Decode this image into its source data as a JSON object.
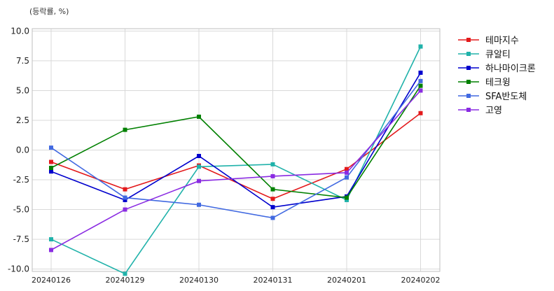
{
  "chart_data": {
    "type": "line",
    "unit_note": "(등락률, %)",
    "title": "",
    "xlabel": "",
    "ylabel": "",
    "categories": [
      "20240126",
      "20240129",
      "20240130",
      "20240131",
      "20240201",
      "20240202"
    ],
    "ylim": [
      -10.2,
      10.2
    ],
    "yticks": [
      10.0,
      7.5,
      5.0,
      2.5,
      0.0,
      -2.5,
      -5.0,
      -7.5,
      -10.0
    ],
    "ytick_labels": [
      "10.0",
      "7.5",
      "5.0",
      "2.5",
      "0.0",
      "-2.5",
      "-5.0",
      "-7.5",
      "-10.0"
    ],
    "grid": true,
    "legend_position": "right",
    "series": [
      {
        "name": "테마지수",
        "color": "#e31a1c",
        "values": [
          -1.0,
          -3.3,
          -1.3,
          -4.1,
          -1.6,
          3.1
        ]
      },
      {
        "name": "큐알티",
        "color": "#20b2aa",
        "values": [
          -7.5,
          -10.4,
          -1.4,
          -1.2,
          -4.2,
          8.7
        ]
      },
      {
        "name": "하나마이크론",
        "color": "#0000cd",
        "values": [
          -1.8,
          -4.2,
          -0.5,
          -4.8,
          -3.9,
          6.5
        ]
      },
      {
        "name": "테크윙",
        "color": "#008000",
        "values": [
          -1.5,
          1.7,
          2.8,
          -3.3,
          -4.0,
          5.4
        ]
      },
      {
        "name": "SFA반도체",
        "color": "#4169e1",
        "values": [
          0.2,
          -4.0,
          -4.6,
          -5.7,
          -2.3,
          5.8
        ]
      },
      {
        "name": "고영",
        "color": "#8a2be2",
        "values": [
          -8.4,
          -5.0,
          -2.6,
          -2.2,
          -1.9,
          5.0
        ]
      }
    ]
  }
}
